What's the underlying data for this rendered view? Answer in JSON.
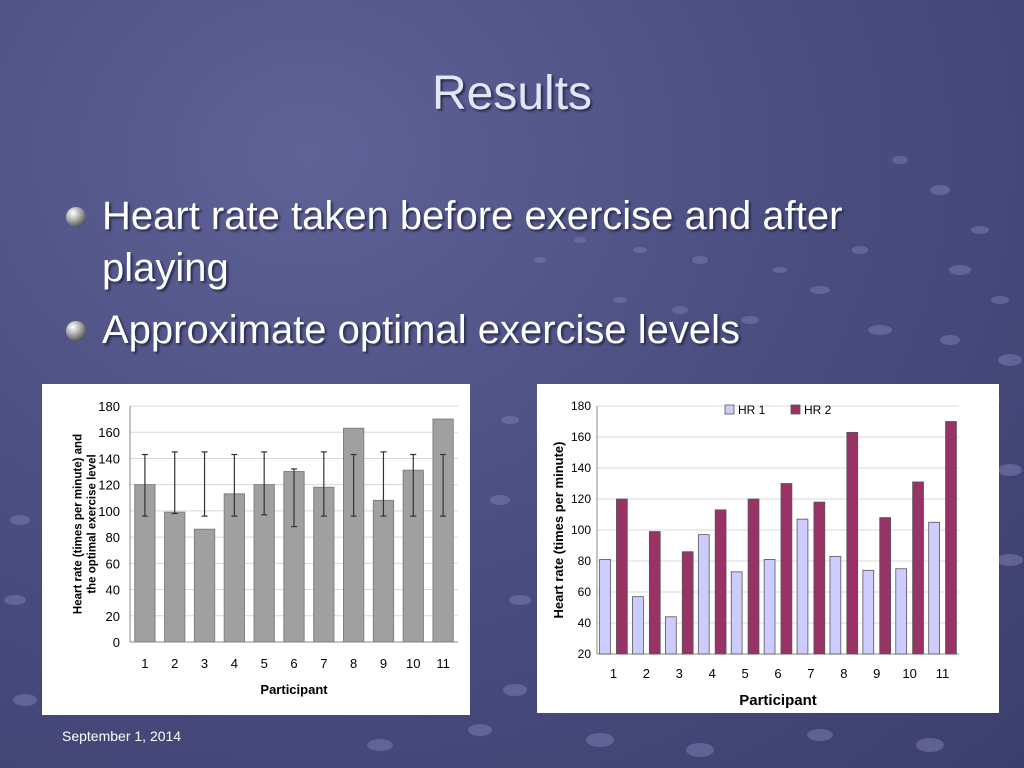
{
  "slide": {
    "title": "Results",
    "bullets": [
      "Heart rate taken before exercise and after playing",
      "Approximate optimal exercise levels"
    ],
    "footer_date": "September 1, 2014"
  },
  "chart_data": [
    {
      "type": "bar",
      "categories": [
        "1",
        "2",
        "3",
        "4",
        "5",
        "6",
        "7",
        "8",
        "9",
        "10",
        "11"
      ],
      "series": [
        {
          "values": [
            120,
            99,
            86,
            113,
            120,
            130,
            118,
            163,
            108,
            131,
            170
          ],
          "color": "#a0a0a0"
        }
      ],
      "error_bars": {
        "low": [
          96,
          98,
          96,
          96,
          97,
          88,
          96,
          96,
          96,
          96,
          96
        ],
        "high": [
          143,
          145,
          145,
          143,
          145,
          132,
          145,
          143,
          145,
          143,
          143
        ]
      },
      "xlabel": "Participant",
      "ylabel": "Heart rate (times per minute) and the optimal exercise level",
      "ylim": [
        0,
        180
      ],
      "yticks": [
        0,
        20,
        40,
        60,
        80,
        100,
        120,
        140,
        160,
        180
      ],
      "grid": true,
      "legend": "none"
    },
    {
      "type": "bar",
      "categories": [
        "1",
        "2",
        "3",
        "4",
        "5",
        "6",
        "7",
        "8",
        "9",
        "10",
        "11"
      ],
      "series": [
        {
          "name": "HR 1",
          "values": [
            81,
            57,
            44,
            97,
            73,
            81,
            107,
            83,
            74,
            75,
            105
          ],
          "color": "#ccccff"
        },
        {
          "name": "HR 2",
          "values": [
            120,
            99,
            86,
            113,
            120,
            130,
            118,
            163,
            108,
            131,
            170
          ],
          "color": "#993366"
        }
      ],
      "xlabel": "Participant",
      "ylabel": "Heart rate (times per minute)",
      "ylim": [
        20,
        180
      ],
      "yticks": [
        20,
        40,
        60,
        80,
        100,
        120,
        140,
        160,
        180
      ],
      "grid": true,
      "legend": "top-center"
    }
  ]
}
